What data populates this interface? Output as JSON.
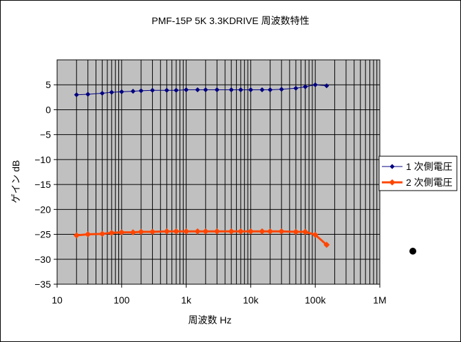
{
  "chart_data": {
    "type": "line",
    "title": "PMF-15P 5K 3.3KDRIVE 周波数特性",
    "xlabel": "周波数 Hz",
    "ylabel": "ゲイン dB",
    "x_scale": "log",
    "xlim": [
      10,
      1000000
    ],
    "ylim": [
      -35,
      10
    ],
    "x_ticks": [
      10,
      100,
      1000,
      10000,
      100000,
      1000000
    ],
    "x_tick_labels": [
      "10",
      "100",
      "1k",
      "10k",
      "100k",
      "1M"
    ],
    "y_ticks": [
      5,
      0,
      -5,
      -10,
      -15,
      -20,
      -25,
      -30,
      -35
    ],
    "y_tick_labels": [
      "5",
      "0",
      "−5",
      "−10",
      "−15",
      "−20",
      "−25",
      "−30",
      "−35"
    ],
    "grid": true,
    "legend_position": "right",
    "plot_background": "#c0c0c0",
    "x": [
      20,
      30,
      50,
      70,
      100,
      150,
      200,
      300,
      500,
      700,
      1000,
      1500,
      2000,
      3000,
      5000,
      7000,
      10000,
      15000,
      20000,
      30000,
      50000,
      70000,
      100000,
      150000
    ],
    "series": [
      {
        "name": "1 次側電圧",
        "color": "#000080",
        "marker": "diamond",
        "values": [
          3.0,
          3.1,
          3.3,
          3.5,
          3.6,
          3.7,
          3.8,
          3.9,
          3.9,
          3.9,
          4.0,
          4.0,
          4.0,
          4.0,
          4.0,
          4.0,
          4.0,
          4.0,
          4.0,
          4.1,
          4.3,
          4.6,
          5.0,
          4.8
        ]
      },
      {
        "name": "2 次側電圧",
        "color": "#ff4500",
        "marker": "diamond",
        "values": [
          -25.2,
          -25.0,
          -24.9,
          -24.7,
          -24.6,
          -24.6,
          -24.5,
          -24.5,
          -24.4,
          -24.4,
          -24.4,
          -24.4,
          -24.4,
          -24.4,
          -24.4,
          -24.4,
          -24.4,
          -24.4,
          -24.4,
          -24.4,
          -24.5,
          -24.5,
          -25.1,
          -27.1
        ]
      }
    ],
    "annotations": [
      {
        "shape": "dot",
        "color": "#000000"
      }
    ]
  }
}
